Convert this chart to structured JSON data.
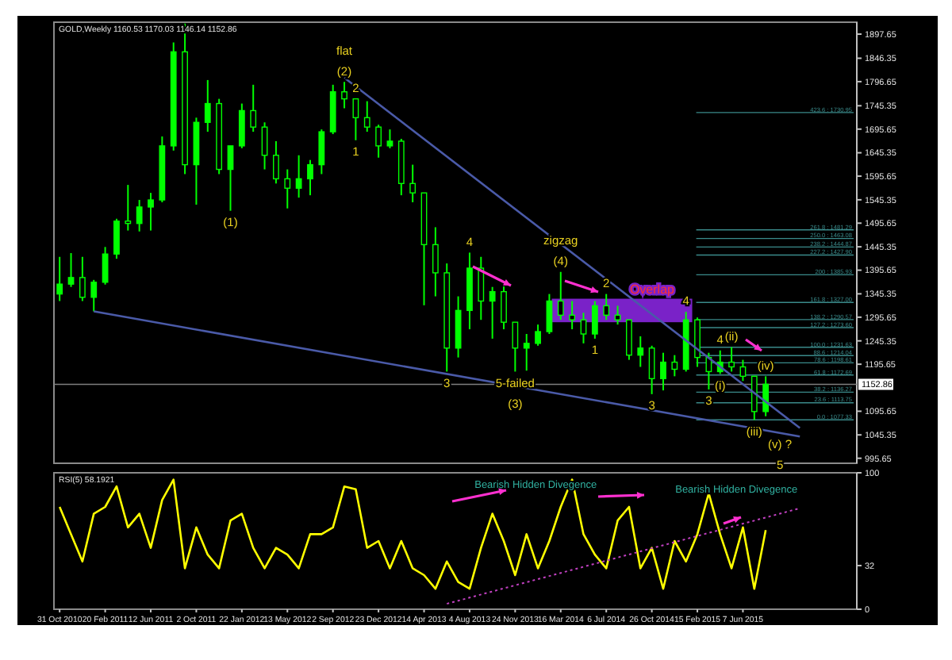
{
  "chart_data": [
    {
      "type": "candlestick",
      "title": "GOLD,Weekly 1160.53 1170.03 1146.14 1152.86",
      "color": "#00ff00",
      "tick_labels": "y",
      "x": [
        "2010-10-31",
        "2010-11-28",
        "2010-12-26",
        "2011-01-23",
        "2011-02-20",
        "2011-03-20",
        "2011-04-17",
        "2011-05-15",
        "2011-06-12",
        "2011-07-10",
        "2011-08-07",
        "2011-09-04",
        "2011-10-02",
        "2011-10-30",
        "2011-11-27",
        "2011-12-25",
        "2012-01-22",
        "2012-02-19",
        "2012-03-18",
        "2012-04-15",
        "2012-05-13",
        "2012-06-10",
        "2012-07-08",
        "2012-08-05",
        "2012-09-02",
        "2012-09-30",
        "2012-10-28",
        "2012-11-25",
        "2012-12-23",
        "2013-01-20",
        "2013-02-17",
        "2013-03-17",
        "2013-04-14",
        "2013-05-12",
        "2013-06-09",
        "2013-07-07",
        "2013-08-04",
        "2013-09-01",
        "2013-09-29",
        "2013-10-27",
        "2013-11-24",
        "2013-12-22",
        "2014-01-19",
        "2014-02-16",
        "2014-03-16",
        "2014-04-13",
        "2014-05-11",
        "2014-06-08",
        "2014-07-06",
        "2014-08-03",
        "2014-08-31",
        "2014-09-28",
        "2014-10-26",
        "2014-11-23",
        "2014-12-21",
        "2015-01-18",
        "2015-02-15",
        "2015-03-15",
        "2015-04-12",
        "2015-05-10",
        "2015-06-07",
        "2015-07-05",
        "2015-08-02"
      ],
      "ohlc": [
        [
          1345,
          1424,
          1330,
          1366
        ],
        [
          1366,
          1432,
          1360,
          1380
        ],
        [
          1380,
          1424,
          1330,
          1338
        ],
        [
          1338,
          1375,
          1308,
          1370
        ],
        [
          1370,
          1445,
          1365,
          1430
        ],
        [
          1430,
          1505,
          1420,
          1500
        ],
        [
          1500,
          1577,
          1480,
          1495
        ],
        [
          1495,
          1545,
          1478,
          1530
        ],
        [
          1530,
          1560,
          1480,
          1545
        ],
        [
          1545,
          1680,
          1540,
          1660
        ],
        [
          1660,
          1880,
          1650,
          1860
        ],
        [
          1860,
          1920,
          1600,
          1620
        ],
        [
          1620,
          1720,
          1535,
          1710
        ],
        [
          1710,
          1800,
          1690,
          1750
        ],
        [
          1750,
          1760,
          1600,
          1610
        ],
        [
          1610,
          1660,
          1522,
          1660
        ],
        [
          1660,
          1750,
          1655,
          1735
        ],
        [
          1735,
          1790,
          1690,
          1700
        ],
        [
          1700,
          1710,
          1610,
          1640
        ],
        [
          1640,
          1670,
          1580,
          1590
        ],
        [
          1590,
          1610,
          1527,
          1570
        ],
        [
          1570,
          1640,
          1550,
          1590
        ],
        [
          1590,
          1630,
          1555,
          1620
        ],
        [
          1620,
          1695,
          1600,
          1690
        ],
        [
          1690,
          1790,
          1685,
          1775
        ],
        [
          1775,
          1796,
          1740,
          1760
        ],
        [
          1760,
          1760,
          1672,
          1720
        ],
        [
          1720,
          1755,
          1690,
          1700
        ],
        [
          1700,
          1705,
          1635,
          1660
        ],
        [
          1660,
          1695,
          1655,
          1670
        ],
        [
          1670,
          1675,
          1555,
          1580
        ],
        [
          1580,
          1620,
          1540,
          1560
        ],
        [
          1560,
          1560,
          1321,
          1450
        ],
        [
          1450,
          1487,
          1340,
          1390
        ],
        [
          1390,
          1410,
          1180,
          1230
        ],
        [
          1230,
          1340,
          1210,
          1310
        ],
        [
          1310,
          1433,
          1270,
          1400
        ],
        [
          1400,
          1424,
          1290,
          1330
        ],
        [
          1330,
          1360,
          1250,
          1350
        ],
        [
          1350,
          1361,
          1270,
          1285
        ],
        [
          1285,
          1285,
          1180,
          1230
        ],
        [
          1230,
          1260,
          1182,
          1240
        ],
        [
          1240,
          1280,
          1235,
          1265
        ],
        [
          1265,
          1345,
          1260,
          1330
        ],
        [
          1330,
          1392,
          1290,
          1300
        ],
        [
          1300,
          1330,
          1270,
          1290
        ],
        [
          1290,
          1305,
          1240,
          1260
        ],
        [
          1260,
          1330,
          1250,
          1320
        ],
        [
          1320,
          1345,
          1290,
          1300
        ],
        [
          1300,
          1320,
          1280,
          1290
        ],
        [
          1290,
          1290,
          1205,
          1215
        ],
        [
          1215,
          1255,
          1190,
          1230
        ],
        [
          1230,
          1235,
          1132,
          1165
        ],
        [
          1165,
          1220,
          1140,
          1200
        ],
        [
          1200,
          1215,
          1170,
          1185
        ],
        [
          1185,
          1307,
          1180,
          1290
        ],
        [
          1290,
          1295,
          1190,
          1210
        ],
        [
          1210,
          1220,
          1142,
          1180
        ],
        [
          1180,
          1225,
          1175,
          1200
        ],
        [
          1200,
          1232,
          1180,
          1190
        ],
        [
          1190,
          1205,
          1160,
          1170
        ],
        [
          1170,
          1170,
          1077,
          1095
        ],
        [
          1095,
          1170,
          1085,
          1153
        ]
      ],
      "series": [
        {
          "type": "line",
          "x": [
            "2012-09-30",
            "2015-10-25"
          ],
          "values": [
            1805,
            1060
          ],
          "color": "#4a5aa8"
        },
        {
          "type": "line",
          "x": [
            "2011-01-23",
            "2015-10-25"
          ],
          "values": [
            1308,
            1042
          ],
          "color": "#4a5aa8"
        }
      ],
      "xlim": [
        "2010-10-17",
        "2016-03-13"
      ],
      "ylim": [
        985,
        1923
      ],
      "yticks": [
        1897.65,
        1846.35,
        1796.65,
        1745.35,
        1695.65,
        1645.35,
        1595.65,
        1545.35,
        1495.65,
        1445.35,
        1395.65,
        1345.35,
        1295.65,
        1245.35,
        1195.65,
        1095.65,
        1045.35,
        995.65
      ],
      "ref_lines": [
        {
          "axis": "y",
          "value": 1152.86,
          "label": "1152.86",
          "color": "#808080"
        },
        {
          "axis": "y",
          "value": 1730.95,
          "label": "423.6 : 1730.95",
          "color": "#3a8a8a"
        },
        {
          "axis": "y",
          "value": 1481.29,
          "label": "261.8 : 1481.29",
          "color": "#3a8a8a"
        },
        {
          "axis": "y",
          "value": 1463.08,
          "label": "250.0 : 1463.08",
          "color": "#3a8a8a"
        },
        {
          "axis": "y",
          "value": 1444.87,
          "label": "238.2 : 1444.87",
          "color": "#3a8a8a"
        },
        {
          "axis": "y",
          "value": 1427.9,
          "label": "227.2 : 1427.90",
          "color": "#3a8a8a"
        },
        {
          "axis": "y",
          "value": 1385.93,
          "label": "200 : 1385.93",
          "color": "#3a8a8a"
        },
        {
          "axis": "y",
          "value": 1327,
          "label": "161.8 : 1327.00",
          "color": "#3a8a8a"
        },
        {
          "axis": "y",
          "value": 1290.57,
          "label": "138.2 : 1290.57",
          "color": "#3a8a8a"
        },
        {
          "axis": "y",
          "value": 1273.6,
          "label": "127.2 : 1273.60",
          "color": "#3a8a8a"
        },
        {
          "axis": "y",
          "value": 1231.63,
          "label": "100.0 : 1231.63",
          "color": "#3a8a8a"
        },
        {
          "axis": "y",
          "value": 1214.04,
          "label": "88.6 : 1214.04",
          "color": "#3a8a8a"
        },
        {
          "axis": "y",
          "value": 1198.61,
          "label": "78.6 : 1198.61",
          "color": "#3a8a8a"
        },
        {
          "axis": "y",
          "value": 1172.69,
          "label": "61.8 : 1172.69",
          "color": "#3a8a8a"
        },
        {
          "axis": "y",
          "value": 1136.27,
          "label": "38.2 : 1136.27",
          "color": "#3a8a8a"
        },
        {
          "axis": "y",
          "value": 1113.75,
          "label": "23.6 : 1113.75",
          "color": "#3a8a8a"
        },
        {
          "axis": "y",
          "value": 1077.33,
          "label": "0.0 : 1077.33",
          "color": "#3a8a8a"
        }
      ],
      "bands": [
        {
          "axis": "y",
          "from": 1285,
          "to": 1335,
          "label": "Overlap",
          "color": "#7a22c8"
        }
      ],
      "annotations": [
        {
          "text": "(2)",
          "x": "2012-09-30",
          "y": 1796
        },
        {
          "text": "flat",
          "x": "2012-09-30",
          "y": 1796
        },
        {
          "text": "2",
          "x": "2012-10-28",
          "y": 1760
        },
        {
          "text": "1",
          "x": "2012-10-28",
          "y": 1672
        },
        {
          "text": "(1)",
          "x": "2011-12-25",
          "y": 1522
        },
        {
          "text": "4",
          "x": "2013-08-04",
          "y": 1433
        },
        {
          "text": "(4)",
          "x": "2014-03-16",
          "y": 1392
        },
        {
          "text": "zigzag",
          "x": "2014-03-16",
          "y": 1392
        },
        {
          "text": "3",
          "x": "2013-06-09",
          "y": 1180
        },
        {
          "text": "5-failed",
          "x": "2013-11-24",
          "y": 1180
        },
        {
          "text": "(3)",
          "x": "2013-11-24",
          "y": 1180
        },
        {
          "text": "2",
          "x": "2014-07-06",
          "y": 1345
        },
        {
          "text": "1",
          "x": "2014-06-08",
          "y": 1250
        },
        {
          "text": "4",
          "x": "2015-01-18",
          "y": 1307
        },
        {
          "text": "3",
          "x": "2014-10-26",
          "y": 1132
        },
        {
          "text": "4",
          "x": "2015-04-12",
          "y": 1225
        },
        {
          "text": "3",
          "x": "2015-03-15",
          "y": 1142
        },
        {
          "text": "(ii)",
          "x": "2015-05-10",
          "y": 1232
        },
        {
          "text": "(i)",
          "x": "2015-04-12",
          "y": 1175
        },
        {
          "text": "(iv)",
          "x": "2015-08-02",
          "y": 1170
        },
        {
          "text": "(iii)",
          "x": "2015-07-05",
          "y": 1077
        },
        {
          "text": "(v) ?",
          "x": "2015-09-06",
          "y": 1050
        },
        {
          "text": "5",
          "x": "2015-09-06",
          "y": 1050
        }
      ]
    },
    {
      "type": "line",
      "title": "RSI(5) 58.1921",
      "x": [
        "2010-10-31",
        "2010-11-28",
        "2010-12-26",
        "2011-01-23",
        "2011-02-20",
        "2011-03-20",
        "2011-04-17",
        "2011-05-15",
        "2011-06-12",
        "2011-07-10",
        "2011-08-07",
        "2011-09-04",
        "2011-10-02",
        "2011-10-30",
        "2011-11-27",
        "2011-12-25",
        "2012-01-22",
        "2012-02-19",
        "2012-03-18",
        "2012-04-15",
        "2012-05-13",
        "2012-06-10",
        "2012-07-08",
        "2012-08-05",
        "2012-09-02",
        "2012-09-30",
        "2012-10-28",
        "2012-11-25",
        "2012-12-23",
        "2013-01-20",
        "2013-02-17",
        "2013-03-17",
        "2013-04-14",
        "2013-05-12",
        "2013-06-09",
        "2013-07-07",
        "2013-08-04",
        "2013-09-01",
        "2013-09-29",
        "2013-10-27",
        "2013-11-24",
        "2013-12-22",
        "2014-01-19",
        "2014-02-16",
        "2014-03-16",
        "2014-04-13",
        "2014-05-11",
        "2014-06-08",
        "2014-07-06",
        "2014-08-03",
        "2014-08-31",
        "2014-09-28",
        "2014-10-26",
        "2014-11-23",
        "2014-12-21",
        "2015-01-18",
        "2015-02-15",
        "2015-03-15",
        "2015-04-12",
        "2015-05-10",
        "2015-06-07",
        "2015-07-05",
        "2015-08-02"
      ],
      "series": [
        {
          "color": "#ffff00",
          "values": [
            75,
            55,
            35,
            70,
            75,
            90,
            60,
            70,
            45,
            80,
            95,
            30,
            60,
            40,
            30,
            65,
            70,
            45,
            30,
            45,
            40,
            30,
            55,
            55,
            60,
            90,
            88,
            45,
            50,
            30,
            50,
            30,
            25,
            15,
            35,
            20,
            15,
            45,
            70,
            50,
            25,
            55,
            30,
            50,
            75,
            95,
            55,
            40,
            30,
            65,
            75,
            30,
            45,
            15,
            50,
            35,
            55,
            85,
            55,
            30,
            60,
            15,
            58
          ]
        },
        {
          "type": "line",
          "x": [
            "2013-06-09",
            "2015-10-25"
          ],
          "values": [
            4,
            74
          ],
          "color": "#c040c0",
          "line_style": "dotted"
        }
      ],
      "xlim": [
        "2010-10-17",
        "2016-03-13"
      ],
      "ylim": [
        0,
        100
      ],
      "yticks": [
        0,
        32,
        100
      ],
      "xticks": [
        {
          "value": "2010-10-31",
          "label": "31 Oct 2010"
        },
        {
          "value": "2011-02-20",
          "label": "20 Feb 2011"
        },
        {
          "value": "2011-06-12",
          "label": "12 Jun 2011"
        },
        {
          "value": "2011-10-02",
          "label": "2 Oct 2011"
        },
        {
          "value": "2012-01-22",
          "label": "22 Jan 2012"
        },
        {
          "value": "2012-05-13",
          "label": "13 May 2012"
        },
        {
          "value": "2012-09-02",
          "label": "2 Sep 2012"
        },
        {
          "value": "2012-12-23",
          "label": "23 Dec 2012"
        },
        {
          "value": "2013-04-14",
          "label": "14 Apr 2013"
        },
        {
          "value": "2013-08-04",
          "label": "4 Aug 2013"
        },
        {
          "value": "2013-11-24",
          "label": "24 Nov 2013"
        },
        {
          "value": "2014-03-16",
          "label": "16 Mar 2014"
        },
        {
          "value": "2014-07-06",
          "label": "6 Jul 2014"
        },
        {
          "value": "2014-10-26",
          "label": "26 Oct 2014"
        },
        {
          "value": "2015-02-15",
          "label": "15 Feb 2015"
        },
        {
          "value": "2015-06-07",
          "label": "7 Jun 2015"
        }
      ],
      "annotations": [
        "Bearish Hidden Divegence",
        "Bearish Hidden Divegence"
      ]
    }
  ]
}
